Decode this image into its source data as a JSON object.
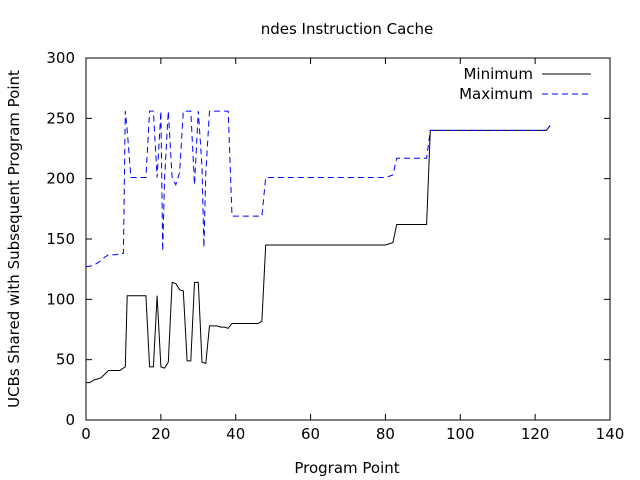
{
  "chart_data": {
    "type": "line",
    "title": "ndes Instruction Cache",
    "xlabel": "Program Point",
    "ylabel": "UCBs Shared with Subsequent Program Point",
    "xlim": [
      0,
      140
    ],
    "ylim": [
      0,
      300
    ],
    "x_ticks": [
      0,
      20,
      40,
      60,
      80,
      100,
      120,
      140
    ],
    "y_ticks": [
      0,
      50,
      100,
      150,
      200,
      250,
      300
    ],
    "x_tick_labels": [
      "0",
      "20",
      "40",
      "60",
      "80",
      "100",
      "120",
      "140"
    ],
    "y_tick_labels": [
      "0",
      "50",
      "100",
      "150",
      "200",
      "250",
      "300"
    ],
    "grid": false,
    "legend_position": "top-right",
    "series": [
      {
        "name": "Minimum",
        "color": "#000000",
        "dash": "solid",
        "points": [
          [
            0,
            31
          ],
          [
            1,
            31
          ],
          [
            2,
            33
          ],
          [
            3,
            34
          ],
          [
            4,
            35
          ],
          [
            5,
            38
          ],
          [
            6,
            41
          ],
          [
            7,
            41
          ],
          [
            8,
            41
          ],
          [
            9,
            41
          ],
          [
            10,
            43
          ],
          [
            10.5,
            44
          ],
          [
            11,
            103
          ],
          [
            12,
            103
          ],
          [
            13,
            103
          ],
          [
            14,
            103
          ],
          [
            15,
            103
          ],
          [
            16,
            103
          ],
          [
            17,
            44
          ],
          [
            18,
            44
          ],
          [
            19,
            103
          ],
          [
            20,
            44
          ],
          [
            21,
            43
          ],
          [
            22,
            48
          ],
          [
            23,
            114
          ],
          [
            24,
            113
          ],
          [
            25,
            108
          ],
          [
            26,
            107
          ],
          [
            27,
            49
          ],
          [
            28,
            49
          ],
          [
            29,
            114
          ],
          [
            30,
            114
          ],
          [
            31,
            48
          ],
          [
            32,
            47
          ],
          [
            33,
            78
          ],
          [
            34,
            78
          ],
          [
            35,
            78
          ],
          [
            36,
            77
          ],
          [
            37,
            77
          ],
          [
            38,
            76
          ],
          [
            39,
            80
          ],
          [
            40,
            80
          ],
          [
            41,
            80
          ],
          [
            42,
            80
          ],
          [
            43,
            80
          ],
          [
            44,
            80
          ],
          [
            45,
            80
          ],
          [
            46,
            80
          ],
          [
            47,
            82
          ],
          [
            48,
            145
          ],
          [
            50,
            145
          ],
          [
            60,
            145
          ],
          [
            70,
            145
          ],
          [
            80,
            145
          ],
          [
            82,
            147
          ],
          [
            83,
            162
          ],
          [
            84,
            162
          ],
          [
            88,
            162
          ],
          [
            91,
            162
          ],
          [
            92,
            240
          ],
          [
            100,
            240
          ],
          [
            110,
            240
          ],
          [
            120,
            240
          ],
          [
            123,
            240
          ],
          [
            124,
            244
          ]
        ]
      },
      {
        "name": "Maximum",
        "color": "#0000ff",
        "dash": "dashed",
        "points": [
          [
            0,
            127
          ],
          [
            2,
            128
          ],
          [
            3,
            130
          ],
          [
            4,
            132
          ],
          [
            5,
            135
          ],
          [
            6,
            137
          ],
          [
            8,
            137
          ],
          [
            9,
            138
          ],
          [
            10,
            138
          ],
          [
            10.5,
            256
          ],
          [
            11,
            240
          ],
          [
            12,
            201
          ],
          [
            13,
            201
          ],
          [
            14,
            201
          ],
          [
            15,
            201
          ],
          [
            16,
            201
          ],
          [
            17,
            256
          ],
          [
            18,
            256
          ],
          [
            19,
            201
          ],
          [
            20,
            256
          ],
          [
            20.5,
            140
          ],
          [
            21,
            201
          ],
          [
            22,
            256
          ],
          [
            23,
            201
          ],
          [
            24,
            195
          ],
          [
            25,
            205
          ],
          [
            26,
            256
          ],
          [
            27,
            256
          ],
          [
            28,
            256
          ],
          [
            29,
            195
          ],
          [
            30,
            256
          ],
          [
            31,
            210
          ],
          [
            31.5,
            143
          ],
          [
            32,
            205
          ],
          [
            33,
            256
          ],
          [
            34,
            256
          ],
          [
            35,
            256
          ],
          [
            36,
            256
          ],
          [
            37,
            256
          ],
          [
            38,
            256
          ],
          [
            39,
            169
          ],
          [
            40,
            169
          ],
          [
            46,
            169
          ],
          [
            47,
            169
          ],
          [
            48,
            201
          ],
          [
            50,
            201
          ],
          [
            60,
            201
          ],
          [
            70,
            201
          ],
          [
            80,
            201
          ],
          [
            82,
            203
          ],
          [
            83,
            217
          ],
          [
            85,
            217
          ],
          [
            90,
            217
          ],
          [
            91,
            217
          ],
          [
            92,
            240
          ],
          [
            100,
            240
          ],
          [
            110,
            240
          ],
          [
            120,
            240
          ],
          [
            123,
            240
          ],
          [
            124,
            244
          ]
        ]
      }
    ]
  }
}
